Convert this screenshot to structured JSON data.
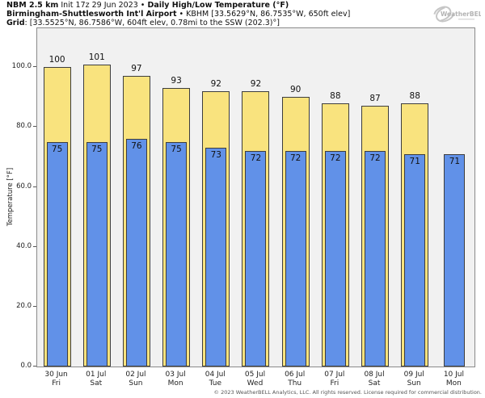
{
  "header": {
    "line1": {
      "bold1": "NBM 2.5 km",
      "normal": " Init 17z 29 Jun 2023 • ",
      "bold2": "Daily High/Low Temperature (°F)"
    },
    "line2": {
      "bold": "Birmingham-Shuttlesworth Int'l Airport",
      "normal": " • KBHM [33.5629°N, 86.7535°W, 650ft elev]"
    },
    "line3": {
      "bold": "Grid",
      "normal": ": [33.5525°N, 86.7586°W, 604ft elev, 0.78mi to the SSW (202.3)°]"
    }
  },
  "logo": {
    "text": "WeatherBELL"
  },
  "chart_data": {
    "type": "bar",
    "title": "NBM 2.5 km Init 17z 29 Jun 2023 • Daily High/Low Temperature (°F)",
    "subtitle": "Birmingham-Shuttlesworth Int'l Airport • KBHM [33.5629°N, 86.7535°W, 650ft elev]",
    "grid_info": "Grid: [33.5525°N, 86.7586°W, 604ft elev, 0.78mi to the SSW (202.3)°]",
    "categories": [
      "30 Jun",
      "01 Jul",
      "02 Jul",
      "03 Jul",
      "04 Jul",
      "05 Jul",
      "06 Jul",
      "07 Jul",
      "08 Jul",
      "09 Jul",
      "10 Jul"
    ],
    "weekdays": [
      "Fri",
      "Sat",
      "Sun",
      "Mon",
      "Tue",
      "Wed",
      "Thu",
      "Fri",
      "Sat",
      "Sun",
      "Mon"
    ],
    "series": [
      {
        "name": "Daily High",
        "color": "#f9e37e",
        "values": [
          100,
          101,
          97,
          93,
          92,
          92,
          90,
          88,
          87,
          88,
          null
        ]
      },
      {
        "name": "Daily Low",
        "color": "#6191e8",
        "values": [
          75,
          75,
          76,
          75,
          73,
          72,
          72,
          72,
          72,
          71,
          71
        ]
      }
    ],
    "xlabel": "",
    "ylabel": "Temperature [°F]",
    "yticks": [
      0,
      20,
      40,
      60,
      80,
      100
    ],
    "ylim": [
      0,
      113
    ],
    "grid": false,
    "legend": "none",
    "plot_bg": "#f1f1f1",
    "bar_border": "#3d3d3d"
  },
  "footer": {
    "copyright": "© 2023 WeatherBELL Analytics, LLC. All rights reserved. License required for commercial distribution."
  }
}
